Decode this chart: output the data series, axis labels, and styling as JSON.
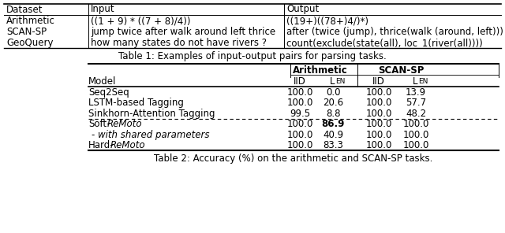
{
  "table1": {
    "caption": "Table 1: Examples of input-output pairs for parsing tasks.",
    "headers": [
      "Dataset",
      "Input",
      "Output"
    ],
    "datasets": [
      "Arithmetic",
      "SCAN-SP",
      "GeoQuery"
    ],
    "inputs": [
      "((1 + 9) * ((7 + 8)/4))",
      "jump twice after walk around left thrice",
      "how many states do not have rivers ?"
    ],
    "outputs": [
      "((19+)((78+)4/)*)",
      "after (twice (jump), thrice(walk (around, left)))",
      "count(exclude(state(all), loc_1(river(all))))"
    ]
  },
  "table2": {
    "caption": "Table 2: Accuracy (%) on the arithmetic and SCAN-SP tasks.",
    "rows": [
      [
        "Seq2Seq",
        "100.0",
        "0.0",
        "100.0",
        "13.9"
      ],
      [
        "LSTM-based Tagging",
        "100.0",
        "20.6",
        "100.0",
        "57.7"
      ],
      [
        "Sinkhorn-Attention Tagging",
        "99.5",
        "8.8",
        "100.0",
        "48.2"
      ],
      [
        "Soft-ReMoto",
        "100.0",
        "86.9",
        "100.0",
        "100.0"
      ],
      [
        "- with shared parameters",
        "100.0",
        "40.9",
        "100.0",
        "100.0"
      ],
      [
        "Hard-ReMoto",
        "100.0",
        "83.3",
        "100.0",
        "100.0"
      ]
    ]
  },
  "bg_color": "#ffffff"
}
